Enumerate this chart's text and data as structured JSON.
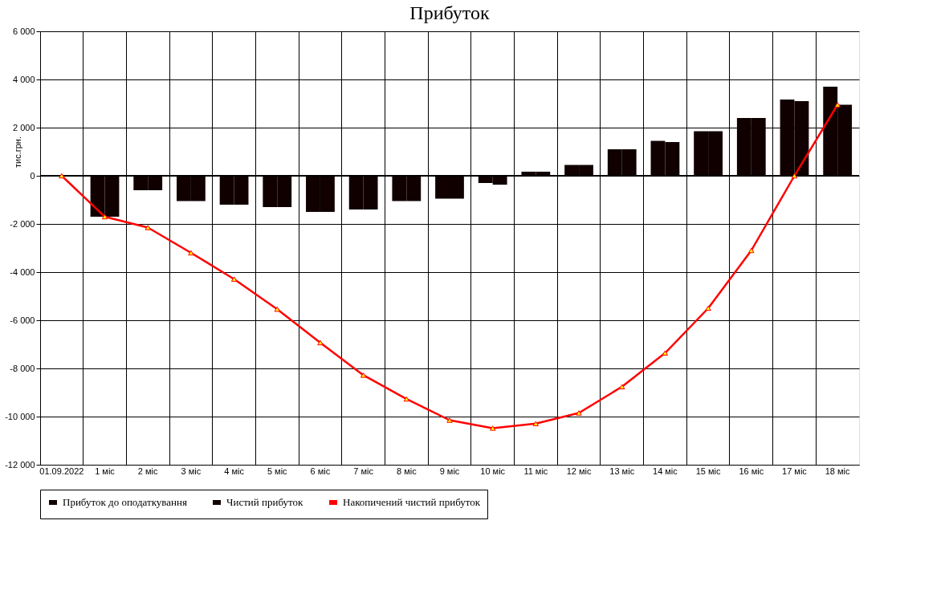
{
  "chart_data": {
    "type": "bar",
    "title": "Прибуток",
    "ylabel": "тис.грн.",
    "categories": [
      "01.09.2022",
      "1 міс",
      "2 міс",
      "3 міс",
      "4 міс",
      "5 міс",
      "6 міс",
      "7 міс",
      "8 міс",
      "9 міс",
      "10 міс",
      "11 міс",
      "12 міс",
      "13 міс",
      "14 міс",
      "15 міс",
      "16 міс",
      "17 міс",
      "18 міс"
    ],
    "series": [
      {
        "name": "Прибуток до оподаткування",
        "color": "#100000",
        "values": [
          null,
          -1700,
          -600,
          -1050,
          -1200,
          -1300,
          -1500,
          -1400,
          -1050,
          -950,
          -300,
          170,
          450,
          1100,
          1450,
          1850,
          2400,
          3170,
          3700
        ]
      },
      {
        "name": "Чистий прибуток",
        "color": "#100000",
        "values": [
          null,
          -1700,
          -600,
          -1050,
          -1200,
          -1300,
          -1500,
          -1400,
          -1050,
          -950,
          -370,
          170,
          450,
          1100,
          1400,
          1850,
          2400,
          3100,
          2950
        ]
      },
      {
        "name": "Накопичений чистий прибуток",
        "type": "line",
        "line_style": "solid",
        "color": "#ff0000",
        "marker": "triangle",
        "values": [
          0,
          -1700,
          -2150,
          -3200,
          -4290,
          -5540,
          -6930,
          -8280,
          -9270,
          -10150,
          -10480,
          -10290,
          -9850,
          -8760,
          -7360,
          -5500,
          -3100,
          0,
          2950
        ]
      }
    ],
    "ylim": [
      -12000,
      6000
    ],
    "yticks": [
      {
        "value": -12000,
        "label": "-12 000"
      },
      {
        "value": -10000,
        "label": "-10 000"
      },
      {
        "value": -8000,
        "label": "-8 000"
      },
      {
        "value": -6000,
        "label": "-6 000"
      },
      {
        "value": -4000,
        "label": "-4 000"
      },
      {
        "value": -2000,
        "label": "-2 000"
      },
      0,
      {
        "value": 2000,
        "label": "2 000"
      },
      {
        "value": 4000,
        "label": "4 000"
      },
      {
        "value": 6000,
        "label": "6 000"
      }
    ],
    "grid": true,
    "legend": "bottom"
  }
}
